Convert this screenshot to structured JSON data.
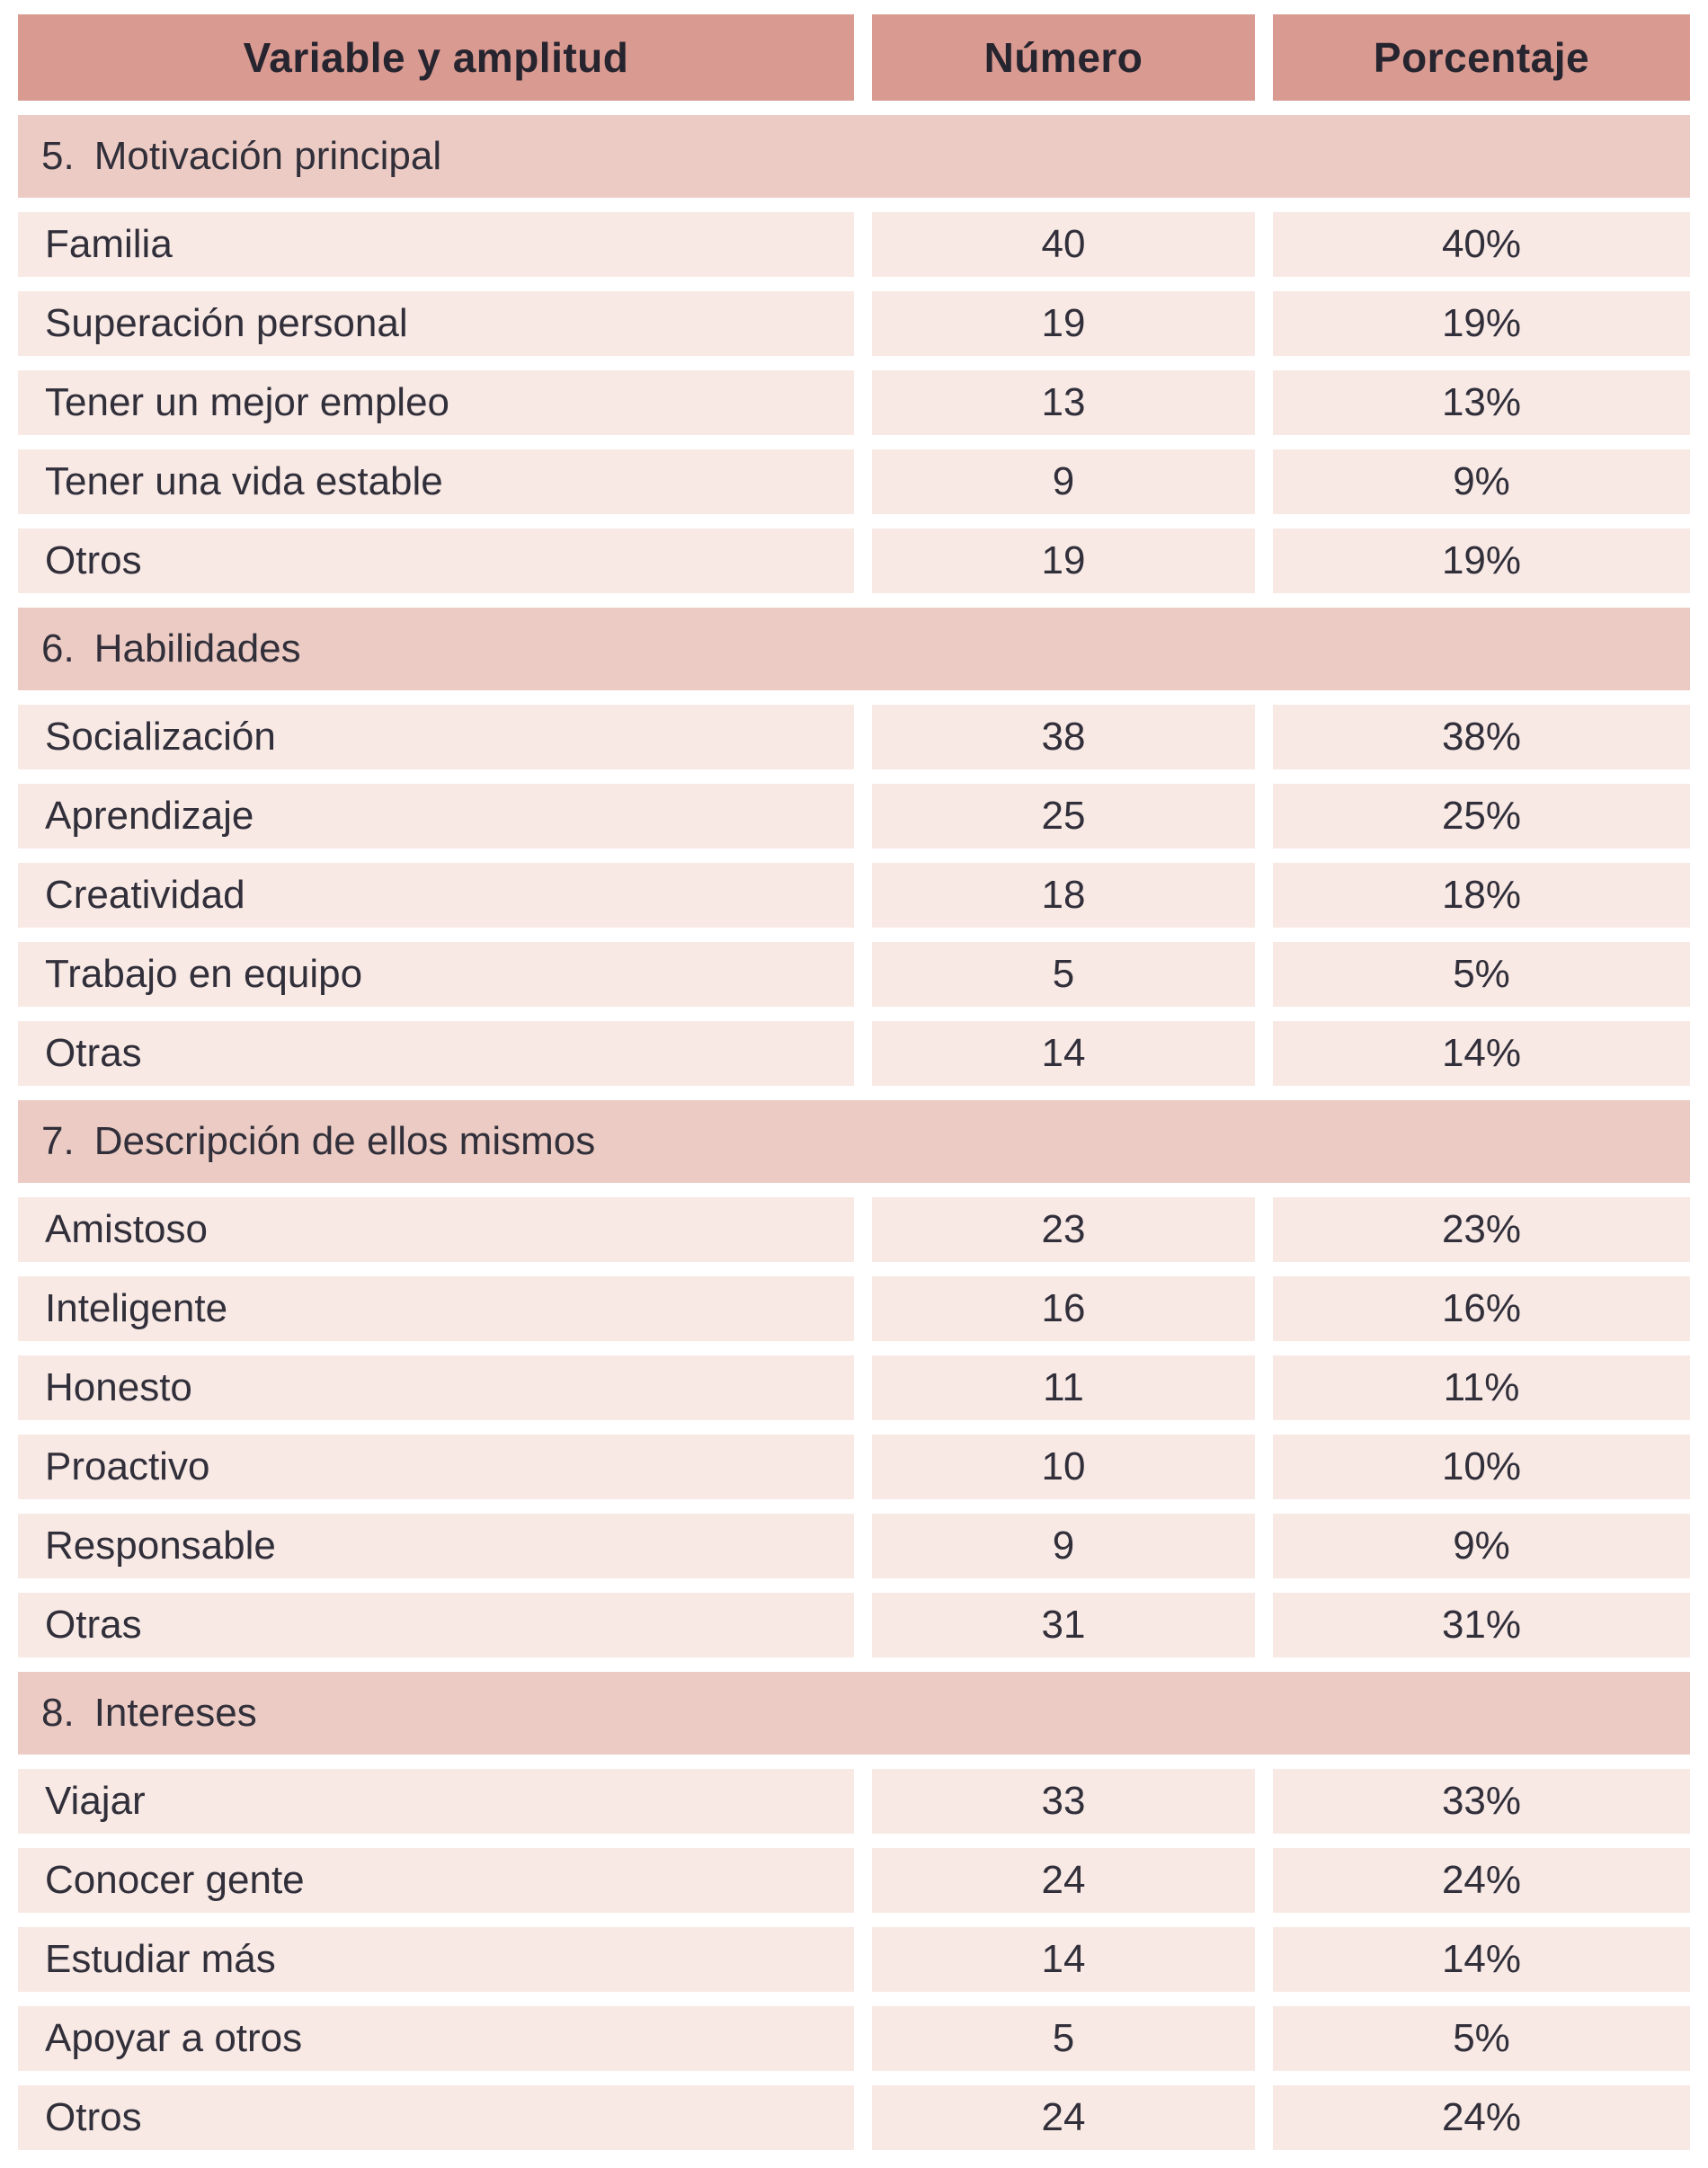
{
  "colors": {
    "header_bg": "#d99a91",
    "section_bg": "#ebcbc3",
    "row_bg": "#f8e9e5",
    "text": "#312f3a",
    "page_bg": "#ffffff"
  },
  "table": {
    "headers": {
      "variable": "Variable y amplitud",
      "number": "Número",
      "percent": "Porcentaje"
    },
    "sections": [
      {
        "id": "5.",
        "title": "Motivación principal",
        "rows": [
          {
            "label": "Familia",
            "number": "40",
            "percent": "40%"
          },
          {
            "label": "Superación personal",
            "number": "19",
            "percent": "19%"
          },
          {
            "label": "Tener un mejor empleo",
            "number": "13",
            "percent": "13%"
          },
          {
            "label": "Tener una vida estable",
            "number": "9",
            "percent": "9%"
          },
          {
            "label": "Otros",
            "number": "19",
            "percent": "19%"
          }
        ]
      },
      {
        "id": "6.",
        "title": "Habilidades",
        "rows": [
          {
            "label": "Socialización",
            "number": "38",
            "percent": "38%"
          },
          {
            "label": "Aprendizaje",
            "number": "25",
            "percent": "25%"
          },
          {
            "label": "Creatividad",
            "number": "18",
            "percent": "18%"
          },
          {
            "label": "Trabajo en equipo",
            "number": "5",
            "percent": "5%"
          },
          {
            "label": "Otras",
            "number": "14",
            "percent": "14%"
          }
        ]
      },
      {
        "id": "7.",
        "title": "Descripción de ellos mismos",
        "rows": [
          {
            "label": "Amistoso",
            "number": "23",
            "percent": "23%"
          },
          {
            "label": "Inteligente",
            "number": "16",
            "percent": "16%"
          },
          {
            "label": "Honesto",
            "number": "11",
            "percent": "11%"
          },
          {
            "label": "Proactivo",
            "number": "10",
            "percent": "10%"
          },
          {
            "label": "Responsable",
            "number": "9",
            "percent": "9%"
          },
          {
            "label": "Otras",
            "number": "31",
            "percent": "31%"
          }
        ]
      },
      {
        "id": "8.",
        "title": "Intereses",
        "rows": [
          {
            "label": "Viajar",
            "number": "33",
            "percent": "33%"
          },
          {
            "label": "Conocer gente",
            "number": "24",
            "percent": "24%"
          },
          {
            "label": "Estudiar más",
            "number": "14",
            "percent": "14%"
          },
          {
            "label": "Apoyar a otros",
            "number": "5",
            "percent": "5%"
          },
          {
            "label": "Otros",
            "number": "24",
            "percent": "24%"
          }
        ]
      }
    ]
  },
  "chart_data": {
    "type": "table",
    "title": "Variable y amplitud",
    "columns": [
      "Variable y amplitud",
      "Número",
      "Porcentaje"
    ],
    "groups": [
      {
        "name": "5. Motivación principal",
        "categories": [
          "Familia",
          "Superación personal",
          "Tener un mejor empleo",
          "Tener una vida estable",
          "Otros"
        ],
        "numbers": [
          40,
          19,
          13,
          9,
          19
        ],
        "percentages": [
          "40%",
          "19%",
          "13%",
          "9%",
          "19%"
        ]
      },
      {
        "name": "6. Habilidades",
        "categories": [
          "Socialización",
          "Aprendizaje",
          "Creatividad",
          "Trabajo en equipo",
          "Otras"
        ],
        "numbers": [
          38,
          25,
          18,
          5,
          14
        ],
        "percentages": [
          "38%",
          "25%",
          "18%",
          "5%",
          "14%"
        ]
      },
      {
        "name": "7. Descripción de ellos mismos",
        "categories": [
          "Amistoso",
          "Inteligente",
          "Honesto",
          "Proactivo",
          "Responsable",
          "Otras"
        ],
        "numbers": [
          23,
          16,
          11,
          10,
          9,
          31
        ],
        "percentages": [
          "23%",
          "16%",
          "11%",
          "10%",
          "9%",
          "31%"
        ]
      },
      {
        "name": "8. Intereses",
        "categories": [
          "Viajar",
          "Conocer gente",
          "Estudiar más",
          "Apoyar a otros",
          "Otros"
        ],
        "numbers": [
          33,
          24,
          14,
          5,
          24
        ],
        "percentages": [
          "33%",
          "24%",
          "14%",
          "5%",
          "24%"
        ]
      }
    ]
  }
}
